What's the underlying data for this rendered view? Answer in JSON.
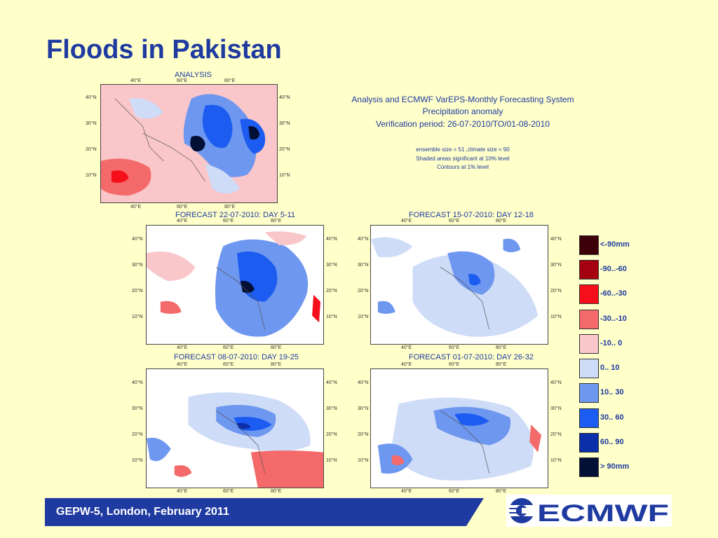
{
  "slide": {
    "title": "Floods in Pakistan",
    "footer": "GEPW-5, London, February 2011"
  },
  "maps": [
    {
      "label": "ANALYSIS"
    },
    {
      "label": "FORECAST 22-07-2010: DAY 5-11"
    },
    {
      "label": "FORECAST 15-07-2010: DAY 12-18"
    },
    {
      "label": "FORECAST 08-07-2010: DAY 19-25"
    },
    {
      "label": "FORECAST 01-07-2010: DAY 26-32"
    }
  ],
  "ticks": {
    "lon": [
      "40°E",
      "60°E",
      "80°E"
    ],
    "lat": [
      "40°N",
      "30°N",
      "20°N",
      "10°N"
    ]
  },
  "info": {
    "line1": "Analysis and ECMWF VarEPS-Monthly Forecasting System",
    "line2": "Precipitation anomaly",
    "line3": "Verification period: 26-07-2010/TO/01-08-2010",
    "small1": "ensemble size = 51  ,climate size = 90",
    "small2": "Shaded areas significant at 10% level",
    "small3": "Contours at 1% level"
  },
  "legend": [
    {
      "label": "<-90mm",
      "color": "#3d0008"
    },
    {
      "label": "-90..-60",
      "color": "#a50010"
    },
    {
      "label": "-60..-30",
      "color": "#f50f1a"
    },
    {
      "label": "-30..-10",
      "color": "#f46a6a"
    },
    {
      "label": "-10..  0",
      "color": "#f9c6ca"
    },
    {
      "label": "0.. 10",
      "color": "#cfdcf7"
    },
    {
      "label": "10.. 30",
      "color": "#6e97f0"
    },
    {
      "label": "30.. 60",
      "color": "#1c5cf0"
    },
    {
      "label": "60.. 90",
      "color": "#0a2fa8"
    },
    {
      "label": ">  90mm",
      "color": "#031035"
    }
  ],
  "colors": {
    "title": "#1f3aa0",
    "footer_bar": "#1f3aa0",
    "background": "#ffffc9"
  },
  "logo": {
    "text": "ECMWF"
  }
}
